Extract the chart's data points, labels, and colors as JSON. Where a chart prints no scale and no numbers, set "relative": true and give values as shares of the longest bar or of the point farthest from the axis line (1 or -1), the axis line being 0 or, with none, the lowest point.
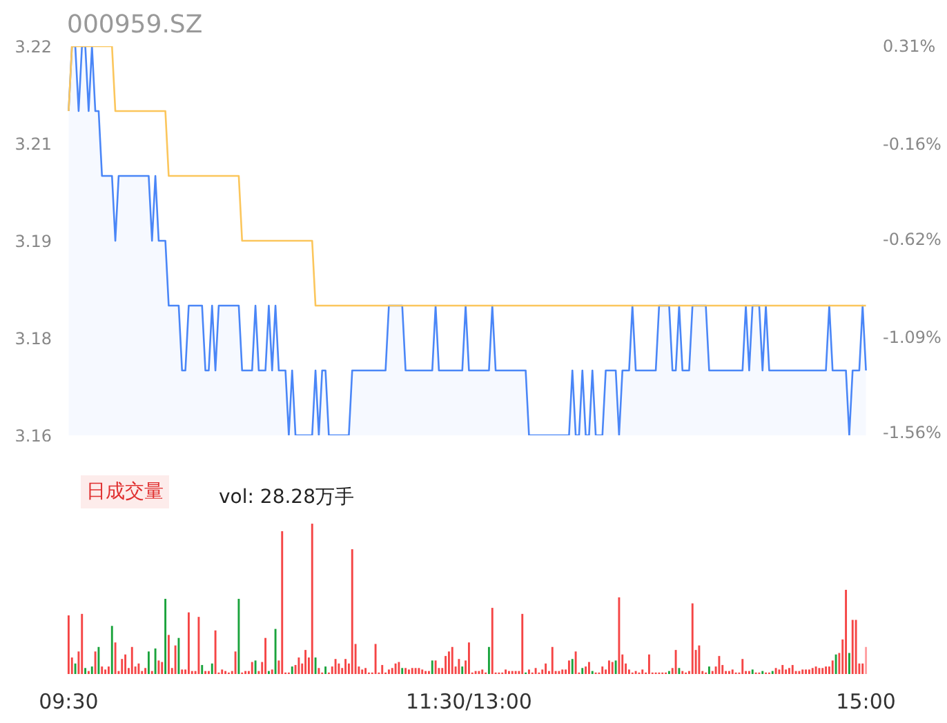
{
  "chart_data": [
    {
      "type": "area",
      "title": "000959.SZ",
      "categories": [
        null,
        null,
        null,
        null,
        null,
        null,
        null,
        null,
        null,
        null,
        null,
        null,
        null,
        null,
        null,
        null,
        null,
        null,
        null,
        null,
        null,
        null,
        null,
        null,
        null,
        null,
        null,
        null,
        null,
        null,
        null,
        null,
        null,
        null,
        null,
        null,
        null,
        null,
        null,
        null,
        null,
        null,
        null,
        null,
        null,
        null,
        null,
        null,
        null,
        null,
        null,
        null,
        null,
        null,
        null,
        null,
        null,
        null,
        null,
        null,
        null,
        null,
        null,
        null,
        null,
        null,
        null,
        null,
        null,
        null,
        null,
        null,
        null,
        null,
        null,
        null,
        null,
        null,
        null,
        null,
        null,
        null,
        null,
        null,
        null,
        null,
        null,
        null,
        null,
        null,
        null,
        null,
        null,
        null,
        null,
        null,
        null,
        null,
        null,
        null,
        null,
        null,
        null,
        null,
        null,
        null,
        null,
        null,
        null,
        null,
        null,
        null,
        null,
        null,
        null,
        null,
        null,
        null,
        null,
        null,
        null,
        null,
        null,
        null,
        null,
        null,
        null,
        null,
        null,
        null,
        null,
        null,
        null,
        null,
        null,
        null,
        null,
        null,
        null,
        null,
        null,
        null,
        null,
        null,
        null,
        null,
        null,
        null,
        null,
        null,
        null,
        null,
        null,
        null,
        null,
        null,
        null,
        null,
        null,
        null,
        null,
        null,
        null,
        null,
        null,
        null,
        null,
        null,
        null,
        null,
        null,
        null,
        null,
        null,
        null,
        null,
        null,
        null,
        null,
        null,
        null,
        null,
        null,
        null,
        null,
        null,
        null,
        null,
        null,
        null,
        null,
        null,
        null,
        null,
        null,
        null,
        null,
        null,
        null,
        null,
        null,
        null,
        null,
        null,
        null,
        null,
        null,
        null,
        null,
        null,
        null,
        null,
        null,
        null,
        null,
        null,
        null,
        null,
        null,
        null,
        null,
        null,
        null,
        null,
        null,
        null,
        null,
        null,
        null,
        null,
        null,
        null,
        null,
        null,
        null,
        null,
        null,
        null,
        null,
        null
      ],
      "series": [
        {
          "type": "area",
          "color": "#4a86f7",
          "values": [
            3.21,
            3.22,
            3.22,
            3.21,
            3.22,
            3.22,
            3.21,
            3.22,
            3.21,
            3.21,
            3.2,
            3.2,
            3.2,
            3.2,
            3.19,
            3.2,
            3.2,
            3.2,
            3.2,
            3.2,
            3.2,
            3.2,
            3.2,
            3.2,
            3.2,
            3.19,
            3.2,
            3.19,
            3.19,
            3.19,
            3.18,
            3.18,
            3.18,
            3.18,
            3.17,
            3.17,
            3.18,
            3.18,
            3.18,
            3.18,
            3.18,
            3.17,
            3.17,
            3.18,
            3.17,
            3.18,
            3.18,
            3.18,
            3.18,
            3.18,
            3.18,
            3.18,
            3.17,
            3.17,
            3.17,
            3.17,
            3.18,
            3.17,
            3.17,
            3.17,
            3.18,
            3.17,
            3.18,
            3.17,
            3.17,
            3.17,
            3.16,
            3.17,
            3.16,
            3.16,
            3.16,
            3.16,
            3.16,
            3.16,
            3.17,
            3.16,
            3.17,
            3.17,
            3.16,
            3.16,
            3.16,
            3.16,
            3.16,
            3.16,
            3.16,
            3.17,
            3.17,
            3.17,
            3.17,
            3.17,
            3.17,
            3.17,
            3.17,
            3.17,
            3.17,
            3.17,
            3.18,
            3.18,
            3.18,
            3.18,
            3.18,
            3.17,
            3.17,
            3.17,
            3.17,
            3.17,
            3.17,
            3.17,
            3.17,
            3.17,
            3.18,
            3.17,
            3.17,
            3.17,
            3.17,
            3.17,
            3.17,
            3.17,
            3.17,
            3.18,
            3.17,
            3.17,
            3.17,
            3.17,
            3.17,
            3.17,
            3.17,
            3.18,
            3.17,
            3.17,
            3.17,
            3.17,
            3.17,
            3.17,
            3.17,
            3.17,
            3.17,
            3.17,
            3.16,
            3.16,
            3.16,
            3.16,
            3.16,
            3.16,
            3.16,
            3.16,
            3.16,
            3.16,
            3.16,
            3.16,
            3.16,
            3.17,
            3.16,
            3.16,
            3.17,
            3.16,
            3.16,
            3.17,
            3.16,
            3.16,
            3.16,
            3.17,
            3.17,
            3.17,
            3.17,
            3.16,
            3.17,
            3.17,
            3.17,
            3.18,
            3.17,
            3.17,
            3.17,
            3.17,
            3.17,
            3.17,
            3.17,
            3.18,
            3.18,
            3.18,
            3.18,
            3.17,
            3.17,
            3.18,
            3.17,
            3.17,
            3.17,
            3.18,
            3.18,
            3.18,
            3.18,
            3.18,
            3.17,
            3.17,
            3.17,
            3.17,
            3.17,
            3.17,
            3.17,
            3.17,
            3.17,
            3.17,
            3.17,
            3.18,
            3.17,
            3.18,
            3.18,
            3.18,
            3.17,
            3.18,
            3.17,
            3.17,
            3.17,
            3.17,
            3.17,
            3.17,
            3.17,
            3.17,
            3.17,
            3.17,
            3.17,
            3.17,
            3.17,
            3.17,
            3.17,
            3.17,
            3.17,
            3.17,
            3.18,
            3.17,
            3.17,
            3.17,
            3.17,
            3.17,
            3.16,
            3.17,
            3.17,
            3.17,
            3.18,
            3.17
          ]
        },
        {
          "type": "line",
          "color": "#fbc65c",
          "values": [
            3.21,
            3.22,
            3.22,
            3.22,
            3.22,
            3.22,
            3.22,
            3.22,
            3.22,
            3.22,
            3.22,
            3.22,
            3.22,
            3.22,
            3.21,
            3.21,
            3.21,
            3.21,
            3.21,
            3.21,
            3.21,
            3.21,
            3.21,
            3.21,
            3.21,
            3.21,
            3.21,
            3.21,
            3.21,
            3.21,
            3.2,
            3.2,
            3.2,
            3.2,
            3.2,
            3.2,
            3.2,
            3.2,
            3.2,
            3.2,
            3.2,
            3.2,
            3.2,
            3.2,
            3.2,
            3.2,
            3.2,
            3.2,
            3.2,
            3.2,
            3.2,
            3.2,
            3.19,
            3.19,
            3.19,
            3.19,
            3.19,
            3.19,
            3.19,
            3.19,
            3.19,
            3.19,
            3.19,
            3.19,
            3.19,
            3.19,
            3.19,
            3.19,
            3.19,
            3.19,
            3.19,
            3.19,
            3.19,
            3.19,
            3.18,
            3.18,
            3.18,
            3.18,
            3.18,
            3.18,
            3.18,
            3.18,
            3.18,
            3.18,
            3.18,
            3.18,
            3.18,
            3.18,
            3.18,
            3.18,
            3.18,
            3.18,
            3.18,
            3.18,
            3.18,
            3.18,
            3.18,
            3.18,
            3.18,
            3.18,
            3.18,
            3.18,
            3.18,
            3.18,
            3.18,
            3.18,
            3.18,
            3.18,
            3.18,
            3.18,
            3.18,
            3.18,
            3.18,
            3.18,
            3.18,
            3.18,
            3.18,
            3.18,
            3.18,
            3.18,
            3.18,
            3.18,
            3.18,
            3.18,
            3.18,
            3.18,
            3.18,
            3.18,
            3.18,
            3.18,
            3.18,
            3.18,
            3.18,
            3.18,
            3.18,
            3.18,
            3.18,
            3.18,
            3.18,
            3.18,
            3.18,
            3.18,
            3.18,
            3.18,
            3.18,
            3.18,
            3.18,
            3.18,
            3.18,
            3.18,
            3.18,
            3.18,
            3.18,
            3.18,
            3.18,
            3.18,
            3.18,
            3.18,
            3.18,
            3.18,
            3.18,
            3.18,
            3.18,
            3.18,
            3.18,
            3.18,
            3.18,
            3.18,
            3.18,
            3.18,
            3.18,
            3.18,
            3.18,
            3.18,
            3.18,
            3.18,
            3.18,
            3.18,
            3.18,
            3.18,
            3.18,
            3.18,
            3.18,
            3.18,
            3.18,
            3.18,
            3.18,
            3.18,
            3.18,
            3.18,
            3.18,
            3.18,
            3.18,
            3.18,
            3.18,
            3.18,
            3.18,
            3.18,
            3.18,
            3.18,
            3.18,
            3.18,
            3.18,
            3.18,
            3.18,
            3.18,
            3.18,
            3.18,
            3.18,
            3.18,
            3.18,
            3.18,
            3.18,
            3.18,
            3.18,
            3.18,
            3.18,
            3.18,
            3.18,
            3.18,
            3.18,
            3.18,
            3.18,
            3.18,
            3.18,
            3.18,
            3.18,
            3.18,
            3.18,
            3.18,
            3.18,
            3.18,
            3.18,
            3.18,
            3.18,
            3.18,
            3.18,
            3.18,
            3.18,
            3.18
          ]
        }
      ],
      "ylim": [
        3.16,
        3.22
      ],
      "yticks": [
        {
          "value": 3.16,
          "label": "3.16"
        },
        {
          "value": 3.175,
          "label": "3.18"
        },
        {
          "value": 3.19,
          "label": "3.19"
        },
        {
          "value": 3.205,
          "label": "3.21"
        },
        {
          "value": 3.22,
          "label": "3.22"
        }
      ],
      "y2lim": [
        -1.56,
        0.31
      ],
      "y2ticks": [
        {
          "value": -1.56,
          "label": "-1.56%"
        },
        {
          "value": -1.09,
          "label": "-1.09%"
        },
        {
          "value": -0.62,
          "label": "-0.62%"
        },
        {
          "value": -0.16,
          "label": "-0.16%"
        },
        {
          "value": 0.31,
          "label": "0.31%"
        }
      ],
      "tick_labels": "y"
    },
    {
      "type": "bar",
      "annotations": [
        "日成交量",
        "vol: 28.28万手"
      ],
      "relative": true,
      "categories": [
        "09:30",
        null,
        null,
        null,
        null,
        null,
        null,
        null,
        null,
        null,
        null,
        null,
        null,
        null,
        null,
        null,
        null,
        null,
        null,
        null,
        null,
        null,
        null,
        null,
        null,
        null,
        null,
        null,
        null,
        null,
        null,
        null,
        null,
        null,
        null,
        null,
        null,
        null,
        null,
        null,
        null,
        null,
        null,
        null,
        null,
        null,
        null,
        null,
        null,
        null,
        null,
        null,
        null,
        null,
        null,
        null,
        null,
        null,
        null,
        null,
        null,
        null,
        null,
        null,
        null,
        null,
        null,
        null,
        null,
        null,
        null,
        null,
        null,
        null,
        null,
        null,
        null,
        null,
        null,
        null,
        null,
        null,
        null,
        null,
        null,
        null,
        null,
        null,
        null,
        null,
        null,
        null,
        null,
        null,
        null,
        null,
        null,
        null,
        null,
        null,
        null,
        null,
        null,
        null,
        null,
        null,
        null,
        null,
        null,
        null,
        null,
        null,
        null,
        null,
        null,
        null,
        null,
        null,
        null,
        null,
        "11:30/13:00",
        null,
        null,
        null,
        null,
        null,
        null,
        null,
        null,
        null,
        null,
        null,
        null,
        null,
        null,
        null,
        null,
        null,
        null,
        null,
        null,
        null,
        null,
        null,
        null,
        null,
        null,
        null,
        null,
        null,
        null,
        null,
        null,
        null,
        null,
        null,
        null,
        null,
        null,
        null,
        null,
        null,
        null,
        null,
        null,
        null,
        null,
        null,
        null,
        null,
        null,
        null,
        null,
        null,
        null,
        null,
        null,
        null,
        null,
        null,
        null,
        null,
        null,
        null,
        null,
        null,
        null,
        null,
        null,
        null,
        null,
        null,
        null,
        null,
        null,
        null,
        null,
        null,
        null,
        null,
        null,
        null,
        null,
        null,
        null,
        null,
        null,
        null,
        null,
        null,
        null,
        null,
        null,
        null,
        null,
        null,
        null,
        null,
        null,
        null,
        null,
        null,
        null,
        null,
        null,
        null,
        null,
        null,
        null,
        null,
        null,
        null,
        null,
        null,
        null,
        null,
        null,
        null,
        null,
        "15:00"
      ],
      "series": [
        {
          "values": [
            0.39,
            0.11,
            0.07,
            0.15,
            0.4,
            0.04,
            0.02,
            0.05,
            0.15,
            0.18,
            0.05,
            0.03,
            0.05,
            0.32,
            0.21,
            0.02,
            0.1,
            0.13,
            0.04,
            0.18,
            0.05,
            0.07,
            0.02,
            0.04,
            0.15,
            0.02,
            0.17,
            0.09,
            0.08,
            0.5,
            0.26,
            0.04,
            0.19,
            0.24,
            0.03,
            0.03,
            0.41,
            0.02,
            0.02,
            0.38,
            0.06,
            0.02,
            0.02,
            0.07,
            0.29,
            0.01,
            0.03,
            0.02,
            0.01,
            0.02,
            0.15,
            0.5,
            0.01,
            0.02,
            0.02,
            0.08,
            0.09,
            0.02,
            0.08,
            0.24,
            0.02,
            0.03,
            0.3,
            0.09,
            0.95,
            0.01,
            0.01,
            0.05,
            0.06,
            0.11,
            0.07,
            0.16,
            0.11,
            1.0,
            0.11,
            0.04,
            0.01,
            0.05,
            0.01,
            0.05,
            0.1,
            0.07,
            0.04,
            0.1,
            0.07,
            0.83,
            0.2,
            0.05,
            0.03,
            0.04,
            0.01,
            0.01,
            0.2,
            0.01,
            0.06,
            0.01,
            0.03,
            0.04,
            0.07,
            0.08,
            0.04,
            0.04,
            0.03,
            0.04,
            0.04,
            0.04,
            0.03,
            0.02,
            0.02,
            0.09,
            0.09,
            0.04,
            0.04,
            0.12,
            0.15,
            0.18,
            0.05,
            0.1,
            0.05,
            0.09,
            0.21,
            0.01,
            0.02,
            0.02,
            0.03,
            0.01,
            0.18,
            0.44,
            0.01,
            0.01,
            0.01,
            0.03,
            0.02,
            0.02,
            0.02,
            0.02,
            0.4,
            0.01,
            0.03,
            0.01,
            0.04,
            0.01,
            0.03,
            0.07,
            0.02,
            0.18,
            0.02,
            0.02,
            0.03,
            0.03,
            0.09,
            0.1,
            0.15,
            0.01,
            0.04,
            0.05,
            0.08,
            0.02,
            0.01,
            0.01,
            0.05,
            0.03,
            0.09,
            0.08,
            0.09,
            0.51,
            0.13,
            0.07,
            0.03,
            0.01,
            0.02,
            0.01,
            0.03,
            0.01,
            0.13,
            0.01,
            0.01,
            0.01,
            0.01,
            0.01,
            0.02,
            0.04,
            0.16,
            0.04,
            0.02,
            0.01,
            0.02,
            0.47,
            0.16,
            0.19,
            0.02,
            0.01,
            0.05,
            0.02,
            0.05,
            0.12,
            0.06,
            0.02,
            0.02,
            0.03,
            0.01,
            0.01,
            0.1,
            0.02,
            0.02,
            0.03,
            0.01,
            0.01,
            0.02,
            0.01,
            0.01,
            0.02,
            0.04,
            0.03,
            0.06,
            0.03,
            0.04,
            0.06,
            0.02,
            0.02,
            0.03,
            0.03,
            0.03,
            0.04,
            0.05,
            0.04,
            0.04,
            0.05,
            0.05,
            0.09,
            0.13,
            0.14,
            0.23,
            0.56,
            0.14,
            0.36,
            0.36,
            0.07,
            0.07,
            0.18
          ],
          "colors": [
            "#f54545",
            "#f54545",
            "#1aa33c",
            "#f54545",
            "#f54545",
            "#1aa33c",
            "#f54545",
            "#1aa33c",
            "#f54545",
            "#1aa33c",
            "#f54545",
            "#f54545",
            "#f54545",
            "#1aa33c",
            "#f54545",
            "#f54545",
            "#f54545",
            "#f54545",
            "#f54545",
            "#f54545",
            "#f54545",
            "#f54545",
            "#f54545",
            "#f54545",
            "#1aa33c",
            "#f54545",
            "#1aa33c",
            "#f54545",
            "#f54545",
            "#1aa33c",
            "#f54545",
            "#f54545",
            "#f54545",
            "#1aa33c",
            "#f54545",
            "#f54545",
            "#f54545",
            "#f54545",
            "#f54545",
            "#f54545",
            "#1aa33c",
            "#f54545",
            "#f54545",
            "#1aa33c",
            "#f54545",
            "#f54545",
            "#f54545",
            "#f54545",
            "#f54545",
            "#f54545",
            "#f54545",
            "#1aa33c",
            "#f54545",
            "#f54545",
            "#f54545",
            "#f54545",
            "#1aa33c",
            "#f54545",
            "#f54545",
            "#f54545",
            "#1aa33c",
            "#f54545",
            "#1aa33c",
            "#f54545",
            "#f54545",
            "#f54545",
            "#f54545",
            "#1aa33c",
            "#f54545",
            "#f54545",
            "#f54545",
            "#f54545",
            "#f54545",
            "#f54545",
            "#1aa33c",
            "#f54545",
            "#f54545",
            "#1aa33c",
            "#f54545",
            "#f54545",
            "#f54545",
            "#f54545",
            "#f54545",
            "#f54545",
            "#f54545",
            "#f54545",
            "#f54545",
            "#f54545",
            "#f54545",
            "#f54545",
            "#f54545",
            "#f54545",
            "#f54545",
            "#f54545",
            "#f54545",
            "#f54545",
            "#f54545",
            "#f54545",
            "#f54545",
            "#f54545",
            "#1aa33c",
            "#f54545",
            "#f54545",
            "#f54545",
            "#f54545",
            "#f54545",
            "#f54545",
            "#f54545",
            "#f54545",
            "#1aa33c",
            "#f54545",
            "#f54545",
            "#f54545",
            "#f54545",
            "#f54545",
            "#f54545",
            "#f54545",
            "#f54545",
            "#1aa33c",
            "#f54545",
            "#f54545",
            "#f54545",
            "#f54545",
            "#f54545",
            "#f54545",
            "#f54545",
            "#1aa33c",
            "#f54545",
            "#f54545",
            "#f54545",
            "#f54545",
            "#f54545",
            "#f54545",
            "#f54545",
            "#f54545",
            "#f54545",
            "#f54545",
            "#1aa33c",
            "#f54545",
            "#f54545",
            "#f54545",
            "#f54545",
            "#f54545",
            "#f54545",
            "#f54545",
            "#f54545",
            "#f54545",
            "#f54545",
            "#f54545",
            "#f54545",
            "#f54545",
            "#1aa33c",
            "#f54545",
            "#f54545",
            "#1aa33c",
            "#f54545",
            "#f54545",
            "#1aa33c",
            "#f54545",
            "#f54545",
            "#f54545",
            "#f54545",
            "#f54545",
            "#f54545",
            "#1aa33c",
            "#f54545",
            "#f54545",
            "#f54545",
            "#f54545",
            "#f54545",
            "#f54545",
            "#f54545",
            "#f54545",
            "#f54545",
            "#f54545",
            "#f54545",
            "#f54545",
            "#f54545",
            "#f54545",
            "#f54545",
            "#1aa33c",
            "#f54545",
            "#f54545",
            "#1aa33c",
            "#f54545",
            "#f54545",
            "#f54545",
            "#f54545",
            "#f54545",
            "#f54545",
            "#f54545",
            "#f54545",
            "#1aa33c",
            "#f54545",
            "#f54545",
            "#f54545",
            "#f54545",
            "#f54545",
            "#f54545",
            "#f54545",
            "#f54545",
            "#f54545",
            "#f54545",
            "#f54545",
            "#f54545",
            "#1aa33c",
            "#f54545",
            "#f54545",
            "#1aa33c",
            "#f54545",
            "#f54545",
            "#1aa33c",
            "#f54545",
            "#f54545",
            "#f54545",
            "#f54545",
            "#f54545",
            "#f54545",
            "#f54545",
            "#f54545",
            "#f54545",
            "#f54545",
            "#f54545",
            "#f54545",
            "#f54545",
            "#f54545",
            "#f54545",
            "#f54545",
            "#f54545",
            "#f54545",
            "#1aa33c",
            "#f54545",
            "#f54545",
            "#f54545",
            "#1aa33c",
            "#f54545",
            "#f54545",
            "#f54545",
            "#f54545",
            "#ff9ea0"
          ]
        }
      ]
    }
  ]
}
